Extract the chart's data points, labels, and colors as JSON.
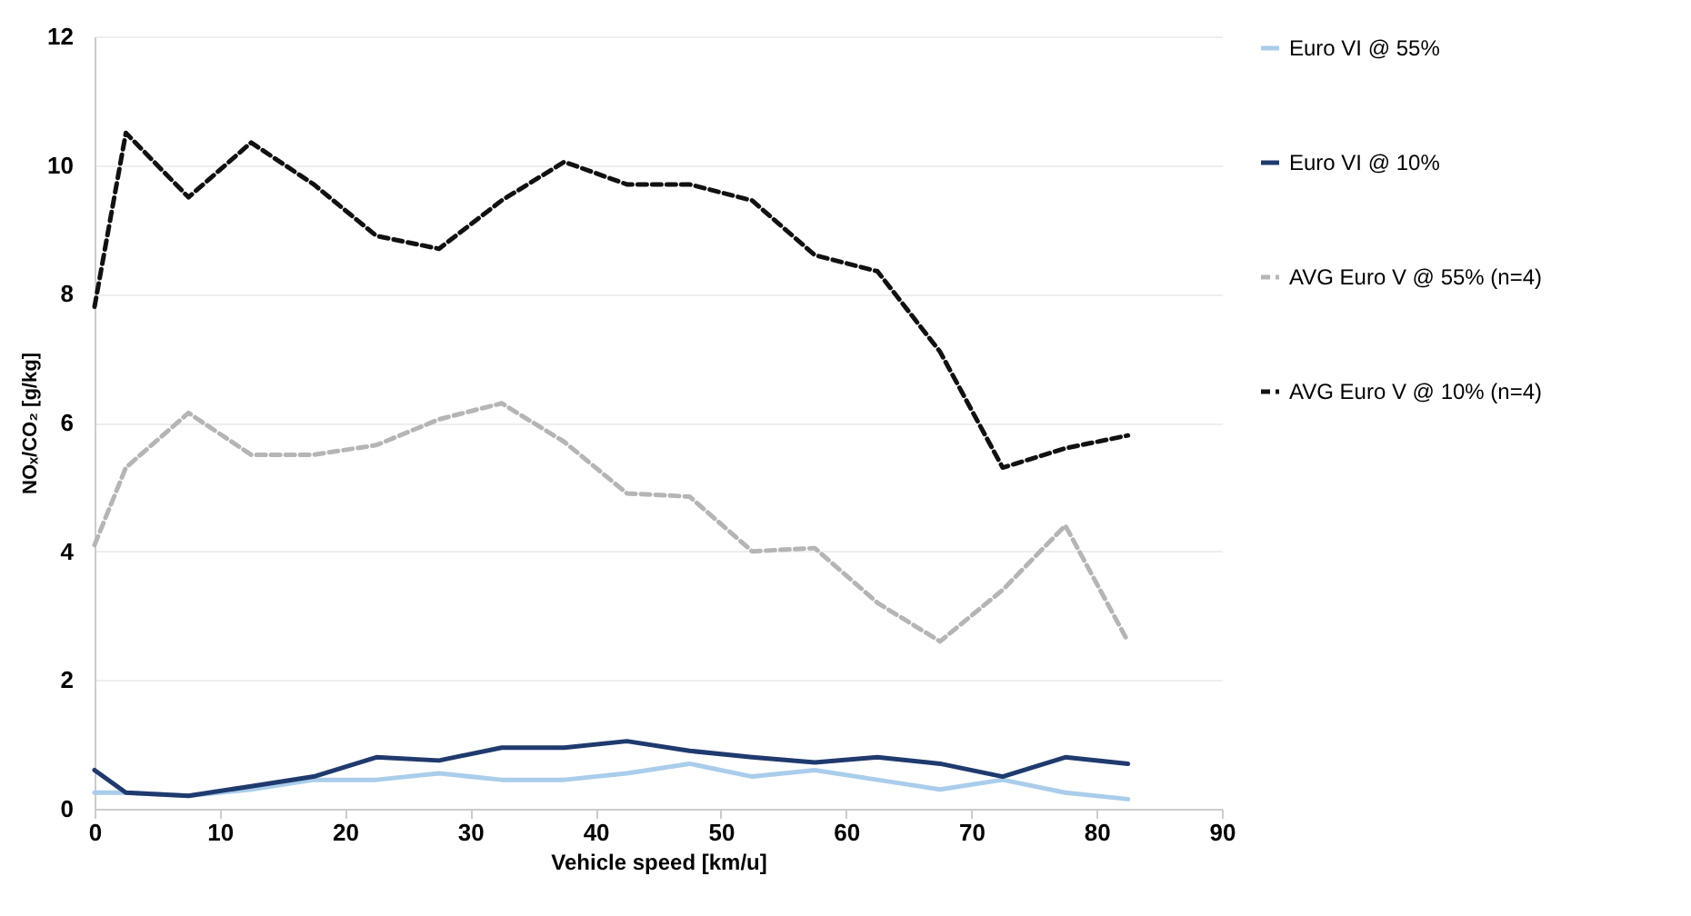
{
  "chart_data": {
    "type": "line",
    "xlabel": "Vehicle speed [km/u]",
    "ylabel": "NOₓ/CO₂ [g/kg]",
    "x": [
      0,
      2.5,
      7.5,
      12.5,
      17.5,
      22.5,
      27.5,
      32.5,
      37.5,
      42.5,
      47.5,
      52.5,
      57.5,
      62.5,
      67.5,
      72.5,
      77.5,
      82.5
    ],
    "series": [
      {
        "name": "Euro VI @ 55%",
        "color": "#a9cdea",
        "line_style": "solid",
        "values": [
          0.25,
          0.25,
          0.2,
          0.3,
          0.45,
          0.45,
          0.55,
          0.45,
          0.45,
          0.55,
          0.7,
          0.5,
          0.6,
          0.45,
          0.3,
          0.45,
          0.25,
          0.15
        ]
      },
      {
        "name": "Euro VI @ 10%",
        "color": "#1f3a6e",
        "line_style": "solid",
        "values": [
          0.6,
          0.25,
          0.2,
          0.35,
          0.5,
          0.8,
          0.75,
          0.95,
          0.95,
          1.05,
          0.9,
          0.8,
          0.72,
          0.8,
          0.7,
          0.5,
          0.8,
          0.7
        ]
      },
      {
        "name": "AVG Euro V @ 55% (n=4)",
        "color": "#b5b5b5",
        "line_style": "dashed",
        "values": [
          4.1,
          5.3,
          6.15,
          5.5,
          5.5,
          5.65,
          6.05,
          6.3,
          5.7,
          4.9,
          4.85,
          4.0,
          4.05,
          3.2,
          2.6,
          3.4,
          4.4,
          2.6
        ]
      },
      {
        "name": "AVG Euro V @ 10% (n=4)",
        "color": "#111111",
        "line_style": "dashed",
        "values": [
          7.8,
          10.5,
          9.5,
          10.35,
          9.7,
          8.9,
          8.7,
          9.45,
          10.05,
          9.7,
          9.7,
          9.45,
          8.6,
          8.35,
          7.1,
          5.3,
          5.6,
          5.8
        ]
      }
    ],
    "xlim": [
      0,
      90
    ],
    "xticks": [
      0,
      10,
      20,
      30,
      40,
      50,
      60,
      70,
      80,
      90
    ],
    "ylim": [
      0,
      12
    ],
    "yticks": [
      0,
      2,
      4,
      6,
      8,
      10,
      12
    ],
    "grid": "y",
    "legend": "right",
    "marker": "none"
  }
}
